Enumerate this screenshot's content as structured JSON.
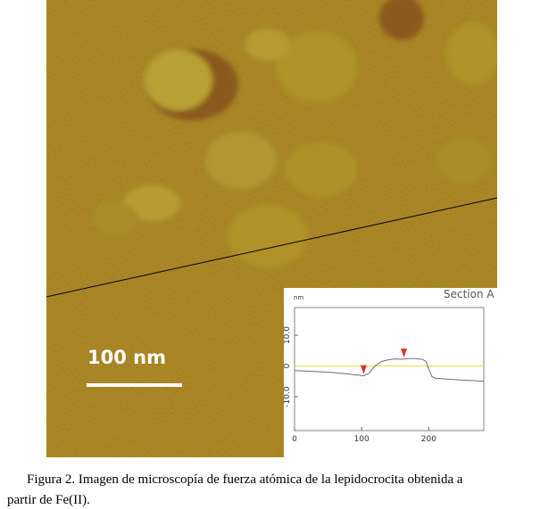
{
  "figure": {
    "scale_bar": "100 nm",
    "caption": [
      "Figura 2. Imagen de microscopía de fuerza atómica de la lepidocrocita obtenida a",
      "partir de Fe(II)."
    ]
  },
  "chart_data": {
    "type": "line",
    "title": "Section A",
    "y_label": "nm",
    "xlim": [
      0,
      282
    ],
    "ylim": [
      -21,
      19
    ],
    "xticks": [
      0,
      100,
      200
    ],
    "yticks": [
      {
        "value": 10,
        "label": "10.0"
      },
      0,
      {
        "value": -10,
        "label": "-10.0"
      }
    ],
    "reference_line": {
      "value": 0,
      "color": "#e8e040"
    },
    "series": [
      {
        "color": "#707070",
        "x": [
          0,
          20,
          40,
          60,
          80,
          95,
          103,
          110,
          120,
          130,
          140,
          150,
          160,
          170,
          180,
          190,
          196,
          200,
          205,
          210,
          230,
          250,
          270,
          282
        ],
        "values": [
          -1.5,
          -1.7,
          -1.9,
          -2.2,
          -2.6,
          -3.0,
          -3.2,
          -2.5,
          0,
          1.5,
          2,
          2.3,
          2.2,
          2.4,
          2.4,
          2.2,
          1.5,
          -1,
          -3.5,
          -4,
          -4.3,
          -4.6,
          -4.8,
          -5
        ]
      }
    ],
    "markers": {
      "color": "#e03020",
      "x": [
        103,
        163
      ],
      "values": [
        -3.2,
        2.2
      ]
    }
  }
}
